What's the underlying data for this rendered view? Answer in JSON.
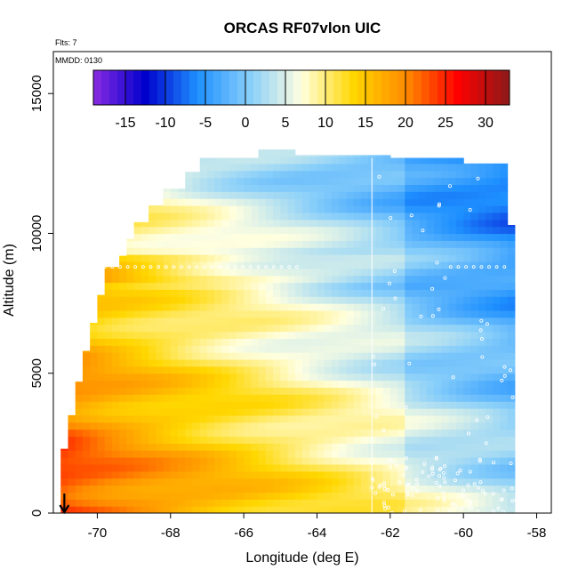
{
  "chart_data": {
    "type": "heatmap",
    "title": "ORCAS RF07vlon UIC",
    "xlabel": "Longitude (deg E)",
    "ylabel": "Altitude (m)",
    "xlim": [
      -71.2,
      -57.6
    ],
    "ylim": [
      0,
      16500
    ],
    "x_ticks": [
      -70,
      -68,
      -66,
      -64,
      -62,
      -60,
      -58
    ],
    "y_ticks": [
      0,
      5000,
      10000,
      15000
    ],
    "annotations": {
      "flights": "Flts: 7",
      "date": "MMDD: 0130"
    },
    "colorbar": {
      "range": [
        -19,
        33
      ],
      "ticks": [
        -15,
        -10,
        -5,
        0,
        5,
        10,
        15,
        20,
        25,
        30
      ],
      "colors": [
        "#8a2be2",
        "#0000cd",
        "#1e90ff",
        "#87cefa",
        "#ffffe0",
        "#ffd700",
        "#ff8c00",
        "#ff0000",
        "#8b1a1a"
      ]
    },
    "vertical_reference_longitude": -62.5,
    "flight_marker_longitude": -70.9,
    "upper_boundary": [
      {
        "lon": -71.0,
        "alt": 2300
      },
      {
        "lon": -70.8,
        "alt": 3500
      },
      {
        "lon": -70.6,
        "alt": 4700
      },
      {
        "lon": -70.3,
        "alt": 5800
      },
      {
        "lon": -70.1,
        "alt": 6800
      },
      {
        "lon": -69.9,
        "alt": 7800
      },
      {
        "lon": -69.7,
        "alt": 8800
      },
      {
        "lon": -69.4,
        "alt": 9200
      },
      {
        "lon": -69.2,
        "alt": 9800
      },
      {
        "lon": -68.9,
        "alt": 10400
      },
      {
        "lon": -68.5,
        "alt": 11000
      },
      {
        "lon": -68.1,
        "alt": 11600
      },
      {
        "lon": -67.6,
        "alt": 12200
      },
      {
        "lon": -67.1,
        "alt": 12700
      },
      {
        "lon": -66.0,
        "alt": 12700
      },
      {
        "lon": -65.5,
        "alt": 13000
      },
      {
        "lon": -64.5,
        "alt": 12800
      },
      {
        "lon": -62.0,
        "alt": 12700
      },
      {
        "lon": -60.0,
        "alt": 12500
      },
      {
        "lon": -58.8,
        "alt": 12500
      }
    ],
    "right_boundary_lon": -58.6
  }
}
